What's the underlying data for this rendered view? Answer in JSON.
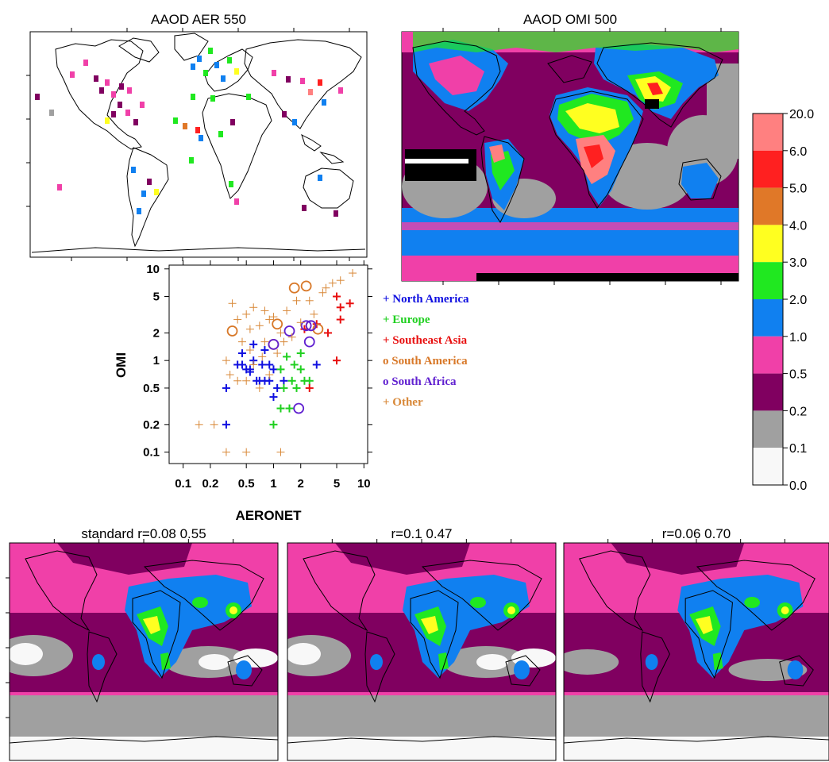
{
  "figure": {
    "titles": {
      "map_aer": "AAOD AER 550",
      "map_omi": "AAOD OMI 500",
      "model_standard": "standard r=0.08 0.55",
      "model_b": "r=0.1 0.47",
      "model_c": "r=0.06 0.70"
    }
  },
  "colorbar": {
    "labels": [
      "20.0",
      "6.0",
      "5.0",
      "4.0",
      "3.0",
      "2.0",
      "1.0",
      "0.5",
      "0.2",
      "0.1",
      "0.0"
    ],
    "colors": [
      "#ff8080",
      "#ff2020",
      "#e07828",
      "#ffff20",
      "#20e820",
      "#1080f0",
      "#f040a8",
      "#800060",
      "#a0a0a0",
      "#f8f8f8"
    ]
  },
  "chart_data": [
    {
      "type": "scatter",
      "title": "",
      "xlabel": "AERONET",
      "ylabel": "OMI",
      "xscale": "log",
      "yscale": "log",
      "xlim": [
        0.07,
        11
      ],
      "ylim": [
        0.075,
        11
      ],
      "xticks": [
        "0.1",
        "0.2",
        "0.5",
        "1",
        "2",
        "5",
        "10"
      ],
      "yticks": [
        "0.1",
        "0.2",
        "0.5",
        "1",
        "2",
        "5",
        "10"
      ],
      "legend_position": "right",
      "series": [
        {
          "name": "+ North America",
          "marker": "plus",
          "color": "#1010e0",
          "points": [
            [
              0.3,
              0.5
            ],
            [
              0.4,
              0.9
            ],
            [
              0.45,
              0.9
            ],
            [
              0.5,
              0.8
            ],
            [
              0.55,
              0.8
            ],
            [
              0.6,
              1.0
            ],
            [
              0.65,
              0.6
            ],
            [
              0.7,
              0.6
            ],
            [
              0.8,
              0.6
            ],
            [
              0.9,
              0.6
            ],
            [
              0.9,
              0.9
            ],
            [
              1.0,
              0.4
            ],
            [
              1.1,
              0.5
            ],
            [
              1.3,
              0.6
            ],
            [
              0.45,
              1.2
            ],
            [
              0.6,
              1.5
            ],
            [
              0.8,
              1.3
            ],
            [
              1.0,
              0.8
            ],
            [
              3.0,
              0.9
            ],
            [
              0.3,
              0.2
            ],
            [
              0.55,
              0.75
            ],
            [
              0.75,
              0.9
            ]
          ]
        },
        {
          "name": "+ Europe",
          "marker": "plus",
          "color": "#20d020",
          "points": [
            [
              1.0,
              0.2
            ],
            [
              1.2,
              0.3
            ],
            [
              1.3,
              0.5
            ],
            [
              1.5,
              0.3
            ],
            [
              1.6,
              0.6
            ],
            [
              1.8,
              0.5
            ],
            [
              2.0,
              0.8
            ],
            [
              2.2,
              0.6
            ],
            [
              2.5,
              0.6
            ],
            [
              1.4,
              1.1
            ],
            [
              1.2,
              0.8
            ],
            [
              2.0,
              1.2
            ],
            [
              1.7,
              0.9
            ]
          ]
        },
        {
          "name": "+ Southeast Asia",
          "marker": "plus",
          "color": "#e81010",
          "points": [
            [
              5.0,
              5.0
            ],
            [
              5.5,
              3.8
            ],
            [
              7.0,
              4.2
            ],
            [
              5.5,
              2.8
            ],
            [
              4.0,
              2.0
            ],
            [
              3.0,
              2.5
            ],
            [
              2.5,
              0.5
            ],
            [
              5.0,
              1.0
            ],
            [
              2.2,
              2.2
            ]
          ]
        },
        {
          "name": "o South America",
          "marker": "circle",
          "color": "#d87828",
          "points": [
            [
              0.35,
              2.1
            ],
            [
              1.1,
              2.5
            ],
            [
              1.7,
              6.2
            ],
            [
              2.3,
              6.5
            ],
            [
              2.6,
              2.4
            ],
            [
              3.1,
              2.2
            ],
            [
              1.0,
              1.5
            ]
          ]
        },
        {
          "name": "o South Africa",
          "marker": "circle",
          "color": "#6020d0",
          "points": [
            [
              1.0,
              1.5
            ],
            [
              1.5,
              2.1
            ],
            [
              2.3,
              2.4
            ],
            [
              2.6,
              2.4
            ],
            [
              2.5,
              1.6
            ],
            [
              1.9,
              0.3
            ]
          ]
        },
        {
          "name": "+ Other",
          "marker": "plus",
          "color": "#d88838",
          "points": [
            [
              0.15,
              0.2
            ],
            [
              0.22,
              0.2
            ],
            [
              0.3,
              0.1
            ],
            [
              0.35,
              4.2
            ],
            [
              0.4,
              2.8
            ],
            [
              0.5,
              3.2
            ],
            [
              0.6,
              3.8
            ],
            [
              0.55,
              2.2
            ],
            [
              0.7,
              2.4
            ],
            [
              0.8,
              3.5
            ],
            [
              0.9,
              2.8
            ],
            [
              1.0,
              3.0
            ],
            [
              1.2,
              2.0
            ],
            [
              1.4,
              3.5
            ],
            [
              1.8,
              4.5
            ],
            [
              2.5,
              4.5
            ],
            [
              3.5,
              5.5
            ],
            [
              4.5,
              7.0
            ],
            [
              5.5,
              7.5
            ],
            [
              7.5,
              9.0
            ],
            [
              3.8,
              6.2
            ],
            [
              0.5,
              0.1
            ],
            [
              1.2,
              0.1
            ],
            [
              0.7,
              0.5
            ],
            [
              0.9,
              0.7
            ],
            [
              0.4,
              0.6
            ],
            [
              0.55,
              1.3
            ],
            [
              0.6,
              0.9
            ],
            [
              0.8,
              1.6
            ],
            [
              1.1,
              1.2
            ],
            [
              1.3,
              1.6
            ],
            [
              1.6,
              1.8
            ],
            [
              2.0,
              2.6
            ],
            [
              2.8,
              3.2
            ],
            [
              0.3,
              1.0
            ],
            [
              0.33,
              0.7
            ],
            [
              0.45,
              1.6
            ],
            [
              0.5,
              0.6
            ],
            [
              0.75,
              1.1
            ]
          ]
        }
      ]
    }
  ]
}
